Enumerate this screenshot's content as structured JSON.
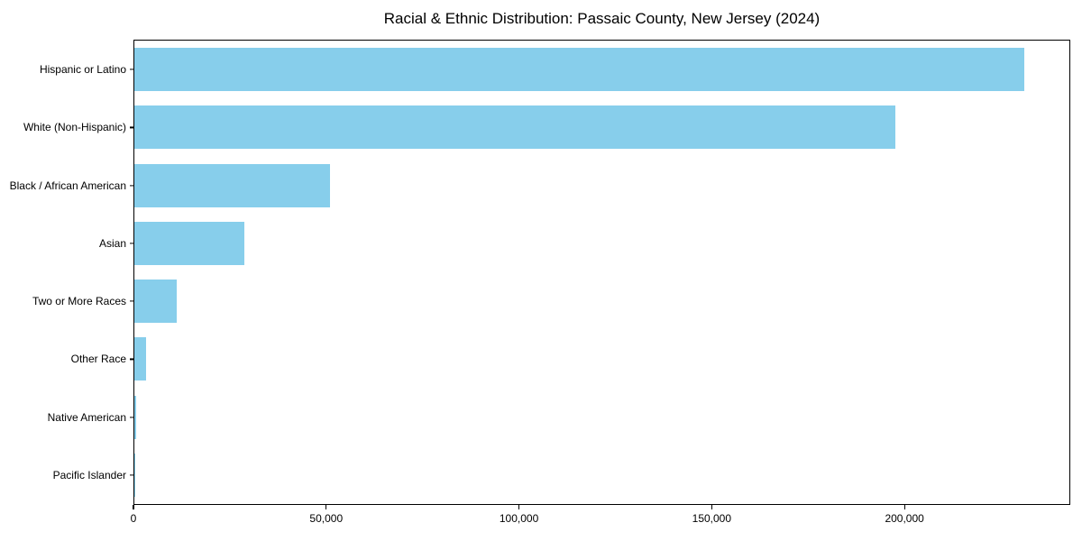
{
  "chart_data": {
    "type": "bar",
    "orientation": "horizontal",
    "title": "Racial & Ethnic Distribution: Passaic County, New Jersey (2024)",
    "categories": [
      "Hispanic or Latino",
      "White (Non-Hispanic)",
      "Black / African American",
      "Asian",
      "Two or More Races",
      "Other Race",
      "Native American",
      "Pacific Islander"
    ],
    "values": [
      231300,
      197700,
      50800,
      28500,
      11000,
      3000,
      400,
      100
    ],
    "xlabel": "",
    "ylabel": "",
    "xlim": [
      0,
      243000
    ],
    "x_ticks": [
      {
        "value": 0,
        "label": "0"
      },
      {
        "value": 50000,
        "label": "50,000"
      },
      {
        "value": 100000,
        "label": "100,000"
      },
      {
        "value": 150000,
        "label": "150,000"
      },
      {
        "value": 200000,
        "label": "200,000"
      }
    ],
    "grid": false,
    "legend": null,
    "colors": {
      "bar": "#87CEEB",
      "axis": "#000000",
      "text": "#000000",
      "background": "#ffffff"
    }
  }
}
